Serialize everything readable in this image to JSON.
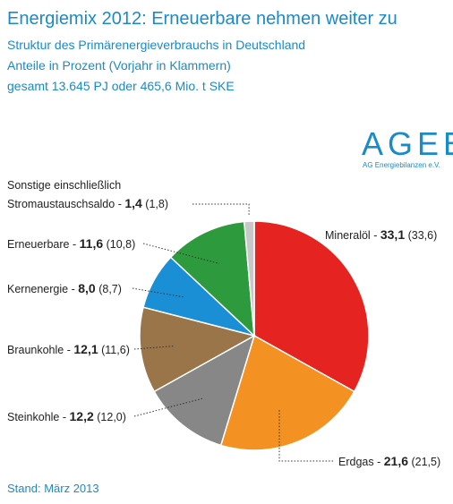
{
  "chart_data": {
    "type": "pie",
    "title": "Energiemix 2012: Erneuerbare nehmen weiter zu",
    "subtitle": [
      "Struktur des Primärenergieverbrauchs in Deutschland",
      "Anteile in Prozent (Vorjahr in Klammern)",
      "gesamt 13.645 PJ oder 465,6 Mio. t SKE"
    ],
    "logo": "AGEB",
    "logo_subtitle": "AG Energiebilanzen e.V.",
    "footnote": "Stand: März 2013",
    "separator": "-",
    "categories": [
      "Mineralöl",
      "Erdgas",
      "Steinkohle",
      "Braunkohle",
      "Kernenergie",
      "Erneuerbare",
      "Sonstige einschließlich Stromaustauschsaldo"
    ],
    "values": [
      33.1,
      21.6,
      12.2,
      12.1,
      8.0,
      11.6,
      1.4
    ],
    "value_labels": [
      "33,1",
      "21,6",
      "12,2",
      "12,1",
      "8,0",
      "11,6",
      "1,4"
    ],
    "previous_values": [
      33.6,
      21.5,
      12.0,
      11.6,
      8.7,
      10.8,
      1.8
    ],
    "previous_value_labels": [
      "(33,6)",
      "(21,5)",
      "(12,0)",
      "(11,6)",
      "(8,7)",
      "(10,8)",
      "(1,8)"
    ],
    "colors": [
      "#e52421",
      "#f39222",
      "#878787",
      "#9a7549",
      "#1a8fd6",
      "#2e9a3e",
      "#c8c8c8"
    ]
  }
}
